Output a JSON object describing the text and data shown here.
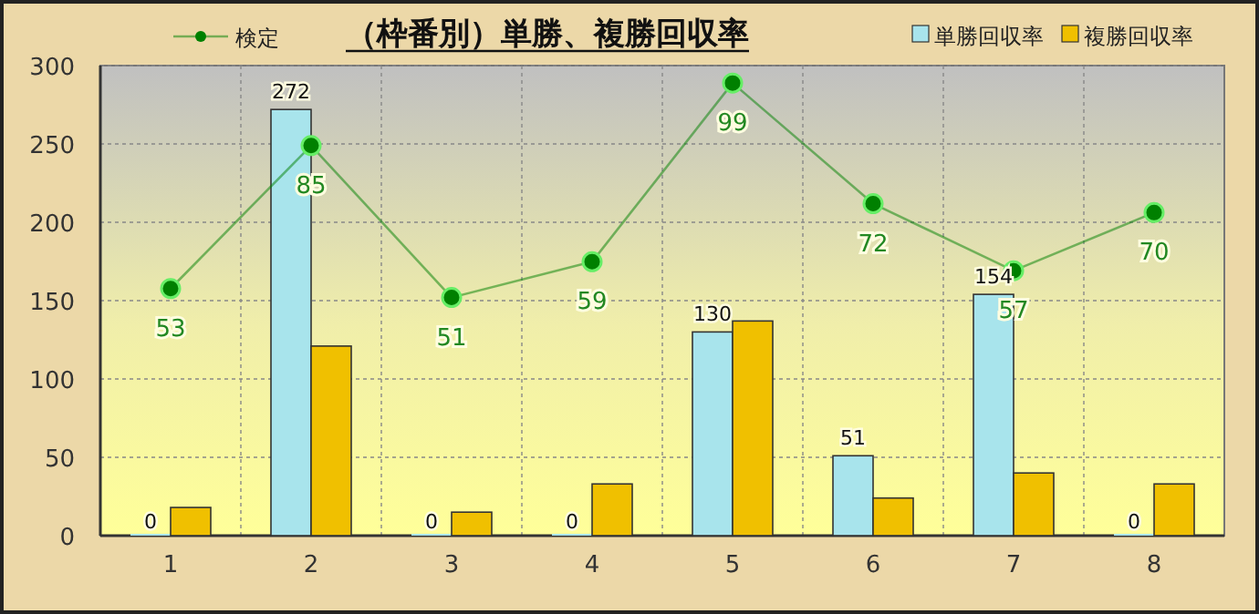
{
  "chart_data": {
    "type": "bar",
    "title": "（枠番別）単勝、複勝回収率",
    "categories": [
      "1",
      "2",
      "3",
      "4",
      "5",
      "6",
      "7",
      "8"
    ],
    "ylim": [
      0,
      300
    ],
    "yticks": [
      0,
      50,
      100,
      150,
      200,
      250,
      300
    ],
    "y2lim": [
      -2.3,
      102.9
    ],
    "grid": true,
    "legend": "top",
    "data_labels": true,
    "tick_labels": [
      "x",
      "y"
    ],
    "series": [
      {
        "name": "単勝回収率",
        "color": "#a8e4ec",
        "values": [
          0,
          272,
          0,
          0,
          130,
          51,
          154,
          0
        ]
      },
      {
        "name": "複勝回収率",
        "color": "#f0c000",
        "values": [
          18,
          121,
          15,
          33,
          137,
          24,
          40,
          33
        ],
        "data_labels": false
      },
      {
        "name": "検定",
        "type": "line",
        "axis": "y2",
        "color": "#008000",
        "marker": "circle",
        "values": [
          53,
          85,
          51,
          59,
          99,
          72,
          57,
          70
        ]
      }
    ]
  }
}
